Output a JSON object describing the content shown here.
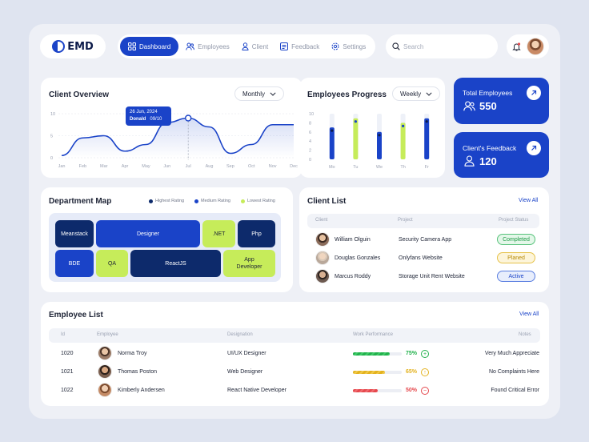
{
  "logo": {
    "text": "EMD"
  },
  "nav": {
    "items": [
      {
        "label": "Dashboard",
        "active": true
      },
      {
        "label": "Employees"
      },
      {
        "label": "Client"
      },
      {
        "label": "Feedback"
      },
      {
        "label": "Settings"
      }
    ]
  },
  "search": {
    "placeholder": "Search"
  },
  "client_overview": {
    "title": "Client Overview",
    "period": "Monthly",
    "tooltip": {
      "date": "26 Jun, 2024",
      "name": "Donald",
      "value": "09/10"
    }
  },
  "employees_progress": {
    "title": "Employees Progress",
    "period": "Weekly"
  },
  "total_employees": {
    "label": "Total Employees",
    "value": "550"
  },
  "client_feedback": {
    "label": "Client's Feedback",
    "value": "120"
  },
  "department_map": {
    "title": "Department Map",
    "legend": [
      "Highest Rating",
      "Medium Rating",
      "Lowest Rating"
    ],
    "departments": [
      "Meanstack",
      "Designer",
      ".NET",
      "Php",
      "BDE",
      "QA",
      "ReactJS",
      "App Developer"
    ]
  },
  "client_list": {
    "title": "Client List",
    "view_all": "View All",
    "columns": [
      "Client",
      "Project",
      "Project Status"
    ],
    "rows": [
      {
        "client": "William Olguin",
        "project": "Security Camera App",
        "status": "Completed"
      },
      {
        "client": "Douglas Gonzales",
        "project": "Onlyfans Website",
        "status": "Planed"
      },
      {
        "client": "Marcus Roddy",
        "project": "Storage Unit Rent Website",
        "status": "Active"
      }
    ]
  },
  "employee_list": {
    "title": "Employee List",
    "view_all": "View All",
    "columns": [
      "Id",
      "Employee",
      "Designation",
      "Work Performance",
      "Notes"
    ],
    "rows": [
      {
        "id": "1020",
        "name": "Norma Troy",
        "designation": "UI/UX Designer",
        "performance": "75%",
        "note": "Very Much Appreciate"
      },
      {
        "id": "1021",
        "name": "Thomas Poston",
        "designation": "Web Designer",
        "performance": "65%",
        "note": "No Complaints Here"
      },
      {
        "id": "1022",
        "name": "Kimberly Andersen",
        "designation": "React Native Developer",
        "performance": "50%",
        "note": "Found Critical Error"
      }
    ]
  },
  "colors": {
    "primary": "#1a43c8",
    "navy": "#0d2a6b",
    "lime": "#c6ec5a",
    "green": "#22b14c",
    "amber": "#e3b21f",
    "red": "#e5484d"
  },
  "chart_data": [
    {
      "type": "line",
      "title": "Client Overview",
      "categories": [
        "Jan",
        "Feb",
        "Mar",
        "Apr",
        "May",
        "Jun",
        "Jul",
        "Aug",
        "Sep",
        "Oct",
        "Nov",
        "Dec"
      ],
      "values": [
        0.5,
        4.5,
        5,
        1.5,
        3,
        8,
        9,
        7,
        1,
        3,
        7.5,
        7.5
      ],
      "yticks": [
        "10",
        "5",
        "0"
      ],
      "ylim": [
        0,
        10
      ]
    },
    {
      "type": "bar",
      "title": "Employees Progress",
      "categories": [
        "Mo",
        "Tu",
        "We",
        "Th",
        "Fr"
      ],
      "series": [
        {
          "values": [
            7,
            9,
            6,
            8,
            9
          ]
        }
      ],
      "yticks": [
        "10",
        "8",
        "6",
        "4",
        "2",
        "0"
      ],
      "ylim": [
        0,
        10
      ]
    }
  ]
}
